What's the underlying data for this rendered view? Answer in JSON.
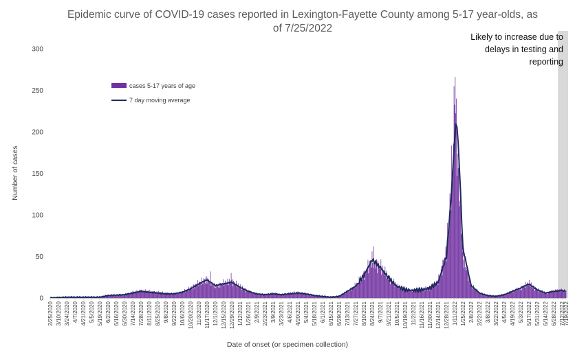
{
  "chart_data": {
    "type": "bar",
    "title": "Epidemic curve of COVID-19 cases reported in Lexington-Fayette County among 5-17 year-olds, as of 7/25/2022",
    "xlabel": "Date of onset (or specimen collection)",
    "ylabel": "Number of cases",
    "ylim": [
      0,
      300
    ],
    "yticks": [
      0,
      50,
      100,
      150,
      200,
      250,
      300
    ],
    "grid": false,
    "legend_position": "top-left",
    "annotation": "Likely to increase due to delays in testing and reporting",
    "shaded_region": {
      "from": "7/5/2022",
      "to": "7/19/2022",
      "color": "#d9d9d9"
    },
    "x_start": "2/25/2020",
    "x_end": "7/19/2022",
    "tick_labels": [
      "2/25/2020",
      "3/10/2020",
      "3/24/2020",
      "4/7/2020",
      "4/21/2020",
      "5/5/2020",
      "5/19/2020",
      "6/2/2020",
      "6/16/2020",
      "6/30/2020",
      "7/14/2020",
      "7/28/2020",
      "8/11/2020",
      "8/25/2020",
      "9/8/2020",
      "9/22/2020",
      "10/6/2020",
      "10/20/2020",
      "11/3/2020",
      "11/17/2020",
      "12/1/2020",
      "12/15/2020",
      "12/29/2020",
      "1/12/2021",
      "1/26/2021",
      "2/9/2021",
      "2/23/2021",
      "3/9/2021",
      "3/23/2021",
      "4/6/2021",
      "4/20/2021",
      "5/4/2021",
      "5/18/2021",
      "6/1/2021",
      "6/15/2021",
      "6/29/2021",
      "7/13/2021",
      "7/27/2021",
      "8/10/2021",
      "8/24/2021",
      "9/7/2021",
      "9/21/2021",
      "10/5/2021",
      "10/19/2021",
      "11/2/2021",
      "11/16/2021",
      "11/30/2021",
      "12/14/2021",
      "12/28/2021",
      "1/11/2022",
      "1/25/2022",
      "2/8/2022",
      "2/22/2022",
      "3/8/2022",
      "3/22/2022",
      "4/5/2022",
      "4/19/2022",
      "5/3/2022",
      "5/17/2022",
      "5/31/2022",
      "6/14/2022",
      "6/28/2022",
      "7/12/2022",
      "7/19/2022"
    ],
    "series": [
      {
        "name": "cases 5-17 years of age",
        "kind": "bar",
        "color": "#7030a0",
        "profile": [
          [
            "2/25/2020",
            0
          ],
          [
            "3/10/2020",
            1
          ],
          [
            "3/24/2020",
            1
          ],
          [
            "4/14/2020",
            1
          ],
          [
            "5/5/2020",
            1
          ],
          [
            "5/19/2020",
            1
          ],
          [
            "6/2/2020",
            3
          ],
          [
            "6/30/2020",
            4
          ],
          [
            "7/14/2020",
            7
          ],
          [
            "7/28/2020",
            9
          ],
          [
            "8/11/2020",
            8
          ],
          [
            "8/25/2020",
            7
          ],
          [
            "9/8/2020",
            6
          ],
          [
            "9/22/2020",
            5
          ],
          [
            "10/6/2020",
            7
          ],
          [
            "10/20/2020",
            12
          ],
          [
            "11/3/2020",
            18
          ],
          [
            "11/17/2020",
            23
          ],
          [
            "12/1/2020",
            14
          ],
          [
            "12/15/2020",
            18
          ],
          [
            "12/29/2020",
            20
          ],
          [
            "1/12/2021",
            14
          ],
          [
            "1/26/2021",
            8
          ],
          [
            "2/9/2021",
            5
          ],
          [
            "2/23/2021",
            4
          ],
          [
            "3/9/2021",
            6
          ],
          [
            "3/23/2021",
            4
          ],
          [
            "4/6/2021",
            6
          ],
          [
            "4/20/2021",
            7
          ],
          [
            "5/4/2021",
            5
          ],
          [
            "5/18/2021",
            3
          ],
          [
            "6/1/2021",
            2
          ],
          [
            "6/15/2021",
            1
          ],
          [
            "6/29/2021",
            2
          ],
          [
            "7/13/2021",
            8
          ],
          [
            "7/27/2021",
            15
          ],
          [
            "8/10/2021",
            28
          ],
          [
            "8/24/2021",
            45
          ],
          [
            "9/7/2021",
            38
          ],
          [
            "9/21/2021",
            25
          ],
          [
            "10/5/2021",
            15
          ],
          [
            "10/19/2021",
            10
          ],
          [
            "11/2/2021",
            9
          ],
          [
            "11/16/2021",
            11
          ],
          [
            "11/30/2021",
            12
          ],
          [
            "12/14/2021",
            20
          ],
          [
            "12/28/2021",
            55
          ],
          [
            "1/4/2022",
            120
          ],
          [
            "1/11/2022",
            210
          ],
          [
            "1/18/2022",
            150
          ],
          [
            "1/25/2022",
            50
          ],
          [
            "2/8/2022",
            15
          ],
          [
            "2/22/2022",
            6
          ],
          [
            "3/8/2022",
            3
          ],
          [
            "3/22/2022",
            2
          ],
          [
            "4/5/2022",
            4
          ],
          [
            "4/19/2022",
            8
          ],
          [
            "5/3/2022",
            12
          ],
          [
            "5/17/2022",
            18
          ],
          [
            "5/31/2022",
            10
          ],
          [
            "6/14/2022",
            6
          ],
          [
            "6/28/2022",
            8
          ],
          [
            "7/12/2022",
            10
          ],
          [
            "7/19/2022",
            8
          ]
        ],
        "peaks": [
          [
            "1/12/2022",
            266
          ],
          [
            "1/10/2022",
            255
          ],
          [
            "1/14/2022",
            240
          ],
          [
            "8/27/2021",
            62
          ],
          [
            "11/23/2020",
            32
          ],
          [
            "12/28/2020",
            30
          ]
        ]
      },
      {
        "name": "7 day moving average",
        "kind": "line",
        "color": "#1f2a5c",
        "points": [
          [
            "2/25/2020",
            0
          ],
          [
            "3/10/2020",
            0.5
          ],
          [
            "3/24/2020",
            1
          ],
          [
            "4/14/2020",
            1
          ],
          [
            "5/5/2020",
            1
          ],
          [
            "5/19/2020",
            1
          ],
          [
            "6/2/2020",
            3
          ],
          [
            "6/30/2020",
            4
          ],
          [
            "7/14/2020",
            6
          ],
          [
            "7/28/2020",
            8
          ],
          [
            "8/11/2020",
            7
          ],
          [
            "8/25/2020",
            6
          ],
          [
            "9/8/2020",
            5
          ],
          [
            "9/22/2020",
            5
          ],
          [
            "10/6/2020",
            7
          ],
          [
            "10/20/2020",
            11
          ],
          [
            "11/3/2020",
            17
          ],
          [
            "11/17/2020",
            22
          ],
          [
            "12/1/2020",
            15
          ],
          [
            "12/15/2020",
            17
          ],
          [
            "12/29/2020",
            19
          ],
          [
            "1/12/2021",
            13
          ],
          [
            "1/26/2021",
            8
          ],
          [
            "2/9/2021",
            5
          ],
          [
            "2/23/2021",
            4
          ],
          [
            "3/9/2021",
            5
          ],
          [
            "3/23/2021",
            4
          ],
          [
            "4/6/2021",
            5
          ],
          [
            "4/20/2021",
            6
          ],
          [
            "5/4/2021",
            5
          ],
          [
            "5/18/2021",
            3
          ],
          [
            "6/1/2021",
            2
          ],
          [
            "6/15/2021",
            1
          ],
          [
            "6/29/2021",
            2
          ],
          [
            "7/13/2021",
            8
          ],
          [
            "7/27/2021",
            14
          ],
          [
            "8/10/2021",
            27
          ],
          [
            "8/24/2021",
            46
          ],
          [
            "9/7/2021",
            37
          ],
          [
            "9/21/2021",
            24
          ],
          [
            "10/5/2021",
            14
          ],
          [
            "10/19/2021",
            10
          ],
          [
            "11/2/2021",
            9
          ],
          [
            "11/16/2021",
            10
          ],
          [
            "11/30/2021",
            12
          ],
          [
            "12/14/2021",
            19
          ],
          [
            "12/28/2021",
            50
          ],
          [
            "1/4/2022",
            110
          ],
          [
            "1/11/2022",
            190
          ],
          [
            "1/14/2022",
            218
          ],
          [
            "1/18/2022",
            175
          ],
          [
            "1/25/2022",
            60
          ],
          [
            "2/8/2022",
            15
          ],
          [
            "2/22/2022",
            6
          ],
          [
            "3/8/2022",
            3
          ],
          [
            "3/22/2022",
            2
          ],
          [
            "4/5/2022",
            4
          ],
          [
            "4/19/2022",
            8
          ],
          [
            "5/3/2022",
            12
          ],
          [
            "5/17/2022",
            17
          ],
          [
            "5/31/2022",
            10
          ],
          [
            "6/14/2022",
            6
          ],
          [
            "6/28/2022",
            8
          ],
          [
            "7/12/2022",
            9
          ],
          [
            "7/19/2022",
            8
          ]
        ]
      }
    ]
  },
  "legend": {
    "bar_label": "cases 5-17 years of age",
    "line_label": "7 day moving average"
  },
  "note_text": "Likely to increase due to delays in testing and reporting"
}
